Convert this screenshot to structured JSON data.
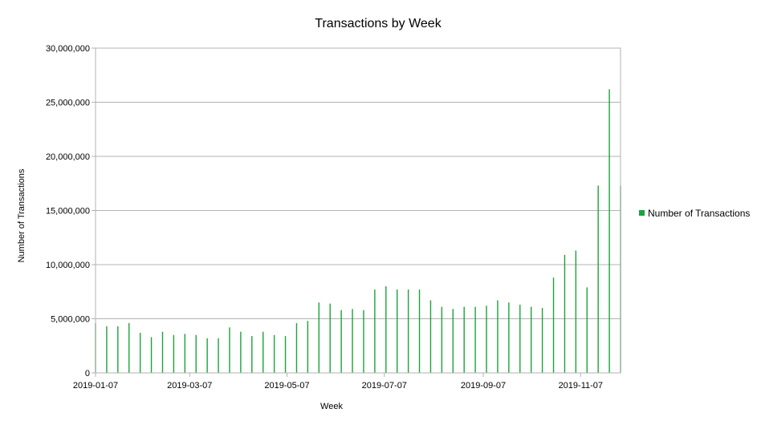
{
  "chart_data": {
    "type": "bar",
    "title": "Transactions by Week",
    "xlabel": "Week",
    "ylabel": "Number of Transactions",
    "ylim": [
      0,
      30000000
    ],
    "yticks": [
      0,
      5000000,
      10000000,
      15000000,
      20000000,
      25000000,
      30000000
    ],
    "ytick_labels": [
      "0",
      "5,000,000",
      "10,000,000",
      "15,000,000",
      "20,000,000",
      "25,000,000",
      "30,000,000"
    ],
    "xlim": [
      "2019-01-07",
      "2019-12-02"
    ],
    "xticks": [
      "2019-01-07",
      "2019-03-07",
      "2019-05-07",
      "2019-07-07",
      "2019-09-07",
      "2019-11-07"
    ],
    "grid": "horizontal",
    "legend_position": "right",
    "series": [
      {
        "name": "Number of Transactions",
        "color": "#1ca33a",
        "x": [
          "2019-01-07",
          "2019-01-14",
          "2019-01-21",
          "2019-01-28",
          "2019-02-04",
          "2019-02-11",
          "2019-02-18",
          "2019-02-25",
          "2019-03-04",
          "2019-03-11",
          "2019-03-18",
          "2019-03-25",
          "2019-04-01",
          "2019-04-08",
          "2019-04-15",
          "2019-04-22",
          "2019-04-29",
          "2019-05-06",
          "2019-05-13",
          "2019-05-20",
          "2019-05-27",
          "2019-06-03",
          "2019-06-10",
          "2019-06-17",
          "2019-06-24",
          "2019-07-01",
          "2019-07-08",
          "2019-07-15",
          "2019-07-22",
          "2019-07-29",
          "2019-08-05",
          "2019-08-12",
          "2019-08-19",
          "2019-08-26",
          "2019-09-02",
          "2019-09-09",
          "2019-09-16",
          "2019-09-23",
          "2019-09-30",
          "2019-10-07",
          "2019-10-14",
          "2019-10-21",
          "2019-10-28",
          "2019-11-04",
          "2019-11-11",
          "2019-11-18",
          "2019-11-25",
          "2019-12-02"
        ],
        "values": [
          4600000,
          4300000,
          4300000,
          4600000,
          3700000,
          3300000,
          3800000,
          3500000,
          3600000,
          3500000,
          3200000,
          3200000,
          4200000,
          3800000,
          3400000,
          3800000,
          3500000,
          3400000,
          4600000,
          4800000,
          6500000,
          6400000,
          5800000,
          5900000,
          5800000,
          7700000,
          8000000,
          7700000,
          7700000,
          7700000,
          6700000,
          6100000,
          5900000,
          6100000,
          6100000,
          6200000,
          6700000,
          6500000,
          6300000,
          6100000,
          6000000,
          8800000,
          10900000,
          11300000,
          7900000,
          17300000,
          26200000,
          17300000
        ]
      }
    ]
  }
}
